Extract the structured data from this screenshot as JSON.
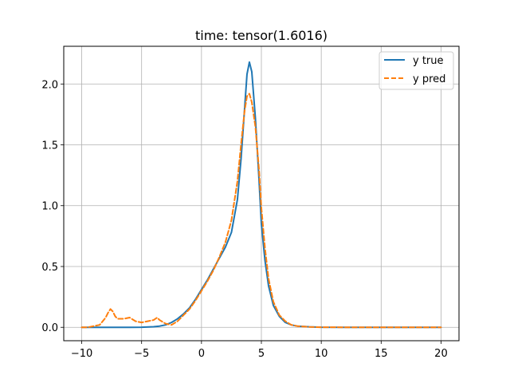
{
  "chart_data": {
    "type": "line",
    "title": "time: tensor(1.6016)",
    "xlabel": "",
    "ylabel": "",
    "xlim": [
      -11.5,
      21.5
    ],
    "ylim": [
      -0.11,
      2.31
    ],
    "grid": true,
    "legend_position": "top-right",
    "xticks": [
      -10,
      -5,
      0,
      5,
      10,
      15,
      20
    ],
    "xtick_labels": [
      "−10",
      "−5",
      "0",
      "5",
      "10",
      "15",
      "20"
    ],
    "yticks": [
      0.0,
      0.5,
      1.0,
      1.5,
      2.0
    ],
    "ytick_labels": [
      "0.0",
      "0.5",
      "1.0",
      "1.5",
      "2.0"
    ],
    "series": [
      {
        "name": "y true",
        "color": "#1f77b4",
        "style": "solid",
        "x": [
          -10,
          -9,
          -8,
          -7,
          -6,
          -5,
          -4,
          -3.5,
          -3,
          -2.5,
          -2,
          -1.5,
          -1,
          -0.5,
          0,
          0.5,
          1,
          1.5,
          2,
          2.5,
          3,
          3.3,
          3.6,
          3.8,
          4.0,
          4.2,
          4.5,
          4.8,
          5.0,
          5.3,
          5.6,
          6.0,
          6.5,
          7,
          7.5,
          8,
          9,
          10,
          12,
          15,
          20
        ],
        "y": [
          0,
          0,
          0,
          0,
          0,
          0.001,
          0.005,
          0.01,
          0.02,
          0.04,
          0.07,
          0.11,
          0.16,
          0.23,
          0.31,
          0.39,
          0.48,
          0.57,
          0.66,
          0.78,
          1.05,
          1.38,
          1.8,
          2.08,
          2.18,
          2.1,
          1.72,
          1.22,
          0.85,
          0.55,
          0.34,
          0.18,
          0.09,
          0.04,
          0.02,
          0.01,
          0.004,
          0.001,
          0,
          0,
          0
        ]
      },
      {
        "name": "y pred",
        "color": "#ff7f0e",
        "style": "dashed",
        "x": [
          -10,
          -9.5,
          -9,
          -8.5,
          -8,
          -7.8,
          -7.6,
          -7.4,
          -7.2,
          -7,
          -6.5,
          -6,
          -5.5,
          -5,
          -4.5,
          -4,
          -3.7,
          -3.5,
          -3,
          -2.5,
          -2,
          -1.5,
          -1,
          -0.5,
          0,
          0.5,
          1,
          1.5,
          2,
          2.5,
          3,
          3.3,
          3.6,
          3.8,
          4.0,
          4.2,
          4.5,
          4.8,
          5.0,
          5.3,
          5.6,
          6.0,
          6.5,
          7,
          7.5,
          8,
          9,
          10,
          12,
          15,
          20
        ],
        "y": [
          0,
          0,
          0.01,
          0.02,
          0.08,
          0.12,
          0.15,
          0.13,
          0.09,
          0.07,
          0.07,
          0.08,
          0.05,
          0.04,
          0.05,
          0.06,
          0.08,
          0.06,
          0.03,
          0.02,
          0.05,
          0.1,
          0.15,
          0.22,
          0.3,
          0.38,
          0.47,
          0.58,
          0.7,
          0.88,
          1.2,
          1.5,
          1.78,
          1.9,
          1.92,
          1.85,
          1.65,
          1.3,
          0.98,
          0.65,
          0.4,
          0.21,
          0.1,
          0.05,
          0.02,
          0.01,
          0.003,
          0.001,
          0,
          0,
          0
        ]
      }
    ]
  }
}
